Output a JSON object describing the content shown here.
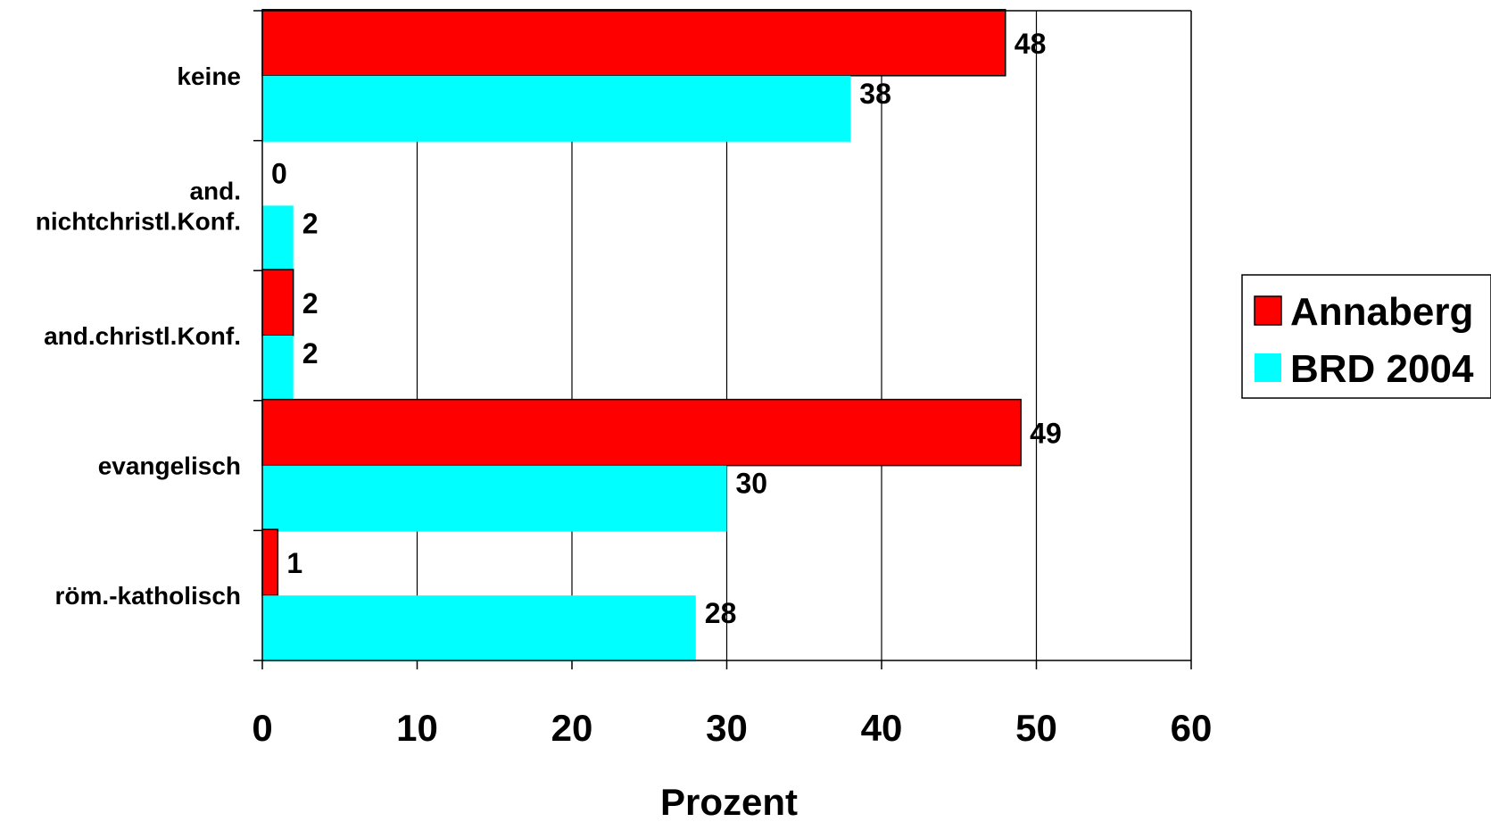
{
  "chart_data": {
    "type": "bar",
    "orientation": "horizontal",
    "categories": [
      "keine",
      "and. nichtchristl.Konf.",
      "and.christl.Konf.",
      "evangelisch",
      "röm.-katholisch"
    ],
    "category_label_lines": [
      [
        "keine"
      ],
      [
        "and.",
        "nichtchristl.Konf."
      ],
      [
        "and.christl.Konf."
      ],
      [
        "evangelisch"
      ],
      [
        "röm.-katholisch"
      ]
    ],
    "series": [
      {
        "name": "Annaberg",
        "color": "#FF0000",
        "values": [
          48,
          0,
          2,
          49,
          1
        ]
      },
      {
        "name": "BRD 2004",
        "color": "#00FFFF",
        "values": [
          38,
          2,
          2,
          30,
          28
        ]
      }
    ],
    "xlabel": "Prozent",
    "xlim": [
      0,
      60
    ],
    "xticks": [
      "0",
      "10",
      "20",
      "30",
      "40",
      "50",
      "60"
    ],
    "grid": "vertical",
    "legend_position": "right"
  }
}
